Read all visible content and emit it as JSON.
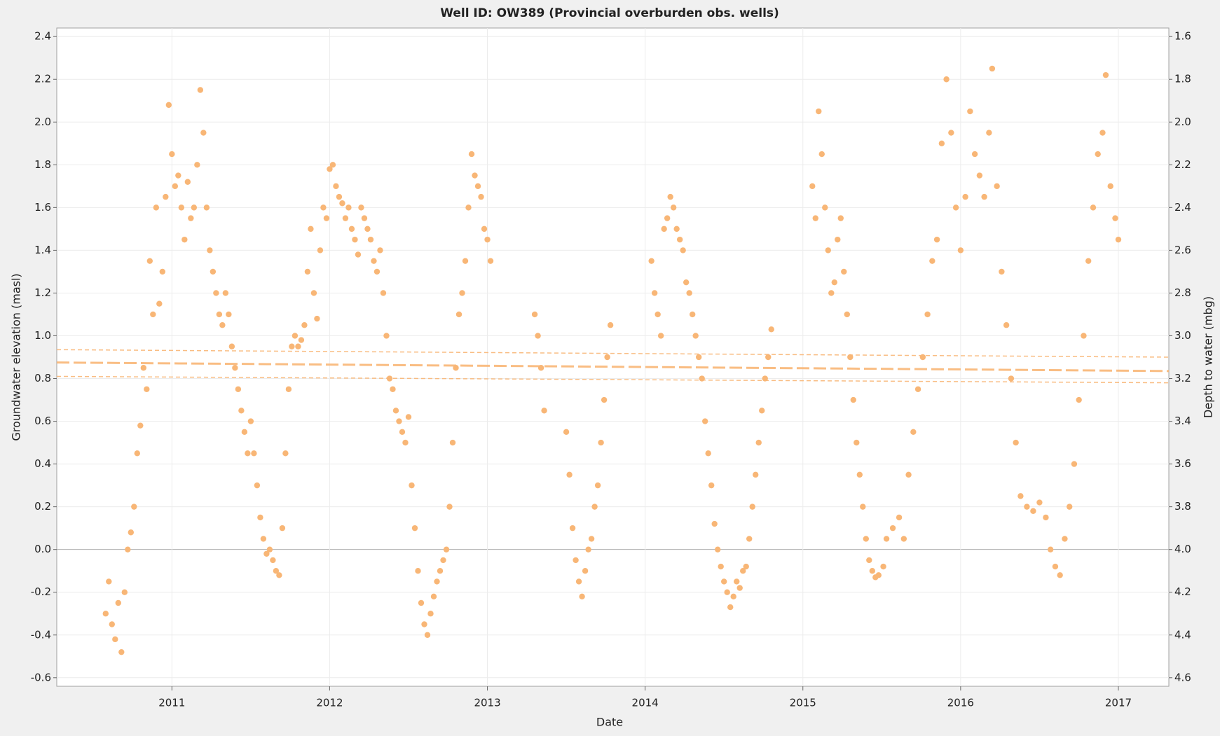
{
  "chart_data": {
    "type": "scatter",
    "title": "Well ID: OW389 (Provincial overburden obs. wells)",
    "xlabel": "Date",
    "ylabel": "Groundwater elevation (masl)",
    "y2label": "Depth to water (mbg)",
    "xlim": [
      2010.27,
      2017.32
    ],
    "xticks": [
      2011,
      2012,
      2013,
      2014,
      2015,
      2016,
      2017
    ],
    "ylim": [
      -0.64,
      2.44
    ],
    "yticks": [
      2.4,
      2.2,
      {
        "value": 2,
        "label": "2.0"
      },
      1.8,
      1.6,
      1.4,
      1.2,
      {
        "value": 1,
        "label": "1.0"
      },
      0.8,
      0.6,
      0.4,
      0.2,
      {
        "value": 0,
        "label": "0.0"
      },
      -0.2,
      -0.4,
      -0.6
    ],
    "y2lim": [
      4.64,
      1.56
    ],
    "y2ticks": [
      1.6,
      1.8,
      {
        "value": 2,
        "label": "2.0"
      },
      2.2,
      2.4,
      2.6,
      2.8,
      {
        "value": 3,
        "label": "3.0"
      },
      3.2,
      3.4,
      3.6,
      3.8,
      {
        "value": 4,
        "label": "4.0"
      },
      4.2,
      4.4,
      4.6
    ],
    "grid": true,
    "series": [
      {
        "color": "#f8b676",
        "x": [
          2010.58,
          2010.6,
          2010.62,
          2010.64,
          2010.66,
          2010.68,
          2010.7,
          2010.72,
          2010.74,
          2010.76,
          2010.78,
          2010.8,
          2010.82,
          2010.84,
          2010.86,
          2010.88,
          2010.9,
          2010.92,
          2010.94,
          2010.96,
          2010.98,
          2011.0,
          2011.02,
          2011.04,
          2011.06,
          2011.08,
          2011.1,
          2011.12,
          2011.14,
          2011.16,
          2011.18,
          2011.2,
          2011.22,
          2011.24,
          2011.26,
          2011.28,
          2011.3,
          2011.32,
          2011.34,
          2011.36,
          2011.38,
          2011.4,
          2011.42,
          2011.44,
          2011.46,
          2011.48,
          2011.5,
          2011.52,
          2011.54,
          2011.56,
          2011.58,
          2011.6,
          2011.62,
          2011.64,
          2011.66,
          2011.68,
          2011.7,
          2011.72,
          2011.74,
          2011.76,
          2011.78,
          2011.8,
          2011.82,
          2011.84,
          2011.86,
          2011.88,
          2011.9,
          2011.92,
          2011.94,
          2011.96,
          2011.98,
          2012.0,
          2012.02,
          2012.04,
          2012.06,
          2012.08,
          2012.1,
          2012.12,
          2012.14,
          2012.16,
          2012.18,
          2012.2,
          2012.22,
          2012.24,
          2012.26,
          2012.28,
          2012.3,
          2012.32,
          2012.34,
          2012.36,
          2012.38,
          2012.4,
          2012.42,
          2012.44,
          2012.46,
          2012.48,
          2012.5,
          2012.52,
          2012.54,
          2012.56,
          2012.58,
          2012.6,
          2012.62,
          2012.64,
          2012.66,
          2012.68,
          2012.7,
          2012.72,
          2012.74,
          2012.76,
          2012.78,
          2012.8,
          2012.82,
          2012.84,
          2012.86,
          2012.88,
          2012.9,
          2012.92,
          2012.94,
          2012.96,
          2012.98,
          2013.0,
          2013.02,
          2013.3,
          2013.32,
          2013.34,
          2013.36,
          2013.5,
          2013.52,
          2013.54,
          2013.56,
          2013.58,
          2013.6,
          2013.62,
          2013.64,
          2013.66,
          2013.68,
          2013.7,
          2013.72,
          2013.74,
          2013.76,
          2013.78,
          2014.04,
          2014.06,
          2014.08,
          2014.1,
          2014.12,
          2014.14,
          2014.16,
          2014.18,
          2014.2,
          2014.22,
          2014.24,
          2014.26,
          2014.28,
          2014.3,
          2014.32,
          2014.34,
          2014.36,
          2014.38,
          2014.4,
          2014.42,
          2014.44,
          2014.46,
          2014.48,
          2014.5,
          2014.52,
          2014.54,
          2014.56,
          2014.58,
          2014.6,
          2014.62,
          2014.64,
          2014.66,
          2014.68,
          2014.7,
          2014.72,
          2014.74,
          2014.76,
          2014.78,
          2014.8,
          2015.06,
          2015.08,
          2015.1,
          2015.12,
          2015.14,
          2015.16,
          2015.18,
          2015.2,
          2015.22,
          2015.24,
          2015.26,
          2015.28,
          2015.3,
          2015.32,
          2015.34,
          2015.36,
          2015.38,
          2015.4,
          2015.42,
          2015.44,
          2015.46,
          2015.48,
          2015.51,
          2015.53,
          2015.57,
          2015.61,
          2015.64,
          2015.67,
          2015.7,
          2015.73,
          2015.76,
          2015.79,
          2015.82,
          2015.85,
          2015.88,
          2015.91,
          2015.94,
          2015.97,
          2016.0,
          2016.03,
          2016.06,
          2016.09,
          2016.12,
          2016.15,
          2016.18,
          2016.2,
          2016.23,
          2016.26,
          2016.29,
          2016.32,
          2016.35,
          2016.38,
          2016.42,
          2016.46,
          2016.5,
          2016.54,
          2016.57,
          2016.6,
          2016.63,
          2016.66,
          2016.69,
          2016.72,
          2016.75,
          2016.78,
          2016.81,
          2016.84,
          2016.87,
          2016.9,
          2016.92,
          2016.95,
          2016.98,
          2017.0
        ],
        "values": [
          -0.3,
          -0.15,
          -0.35,
          -0.42,
          -0.25,
          -0.48,
          -0.2,
          0.0,
          0.08,
          0.2,
          0.45,
          0.58,
          0.85,
          0.75,
          1.35,
          1.1,
          1.6,
          1.15,
          1.3,
          1.65,
          2.08,
          1.85,
          1.7,
          1.75,
          1.6,
          1.45,
          1.72,
          1.55,
          1.6,
          1.8,
          2.15,
          1.95,
          1.6,
          1.4,
          1.3,
          1.2,
          1.1,
          1.05,
          1.2,
          1.1,
          0.95,
          0.85,
          0.75,
          0.65,
          0.55,
          0.45,
          0.6,
          0.45,
          0.3,
          0.15,
          0.05,
          -0.02,
          0.0,
          -0.05,
          -0.1,
          -0.12,
          0.1,
          0.45,
          0.75,
          0.95,
          1.0,
          0.95,
          0.98,
          1.05,
          1.3,
          1.5,
          1.2,
          1.08,
          1.4,
          1.6,
          1.55,
          1.78,
          1.8,
          1.7,
          1.65,
          1.62,
          1.55,
          1.6,
          1.5,
          1.45,
          1.38,
          1.6,
          1.55,
          1.5,
          1.45,
          1.35,
          1.3,
          1.4,
          1.2,
          1.0,
          0.8,
          0.75,
          0.65,
          0.6,
          0.55,
          0.5,
          0.62,
          0.3,
          0.1,
          -0.1,
          -0.25,
          -0.35,
          -0.4,
          -0.3,
          -0.22,
          -0.15,
          -0.1,
          -0.05,
          0.0,
          0.2,
          0.5,
          0.85,
          1.1,
          1.2,
          1.35,
          1.6,
          1.85,
          1.75,
          1.7,
          1.65,
          1.5,
          1.45,
          1.35,
          1.1,
          1.0,
          0.85,
          0.65,
          0.55,
          0.35,
          0.1,
          -0.05,
          -0.15,
          -0.22,
          -0.1,
          0.0,
          0.05,
          0.2,
          0.3,
          0.5,
          0.7,
          0.9,
          1.05,
          1.35,
          1.2,
          1.1,
          1.0,
          1.5,
          1.55,
          1.65,
          1.6,
          1.5,
          1.45,
          1.4,
          1.25,
          1.2,
          1.1,
          1.0,
          0.9,
          0.8,
          0.6,
          0.45,
          0.3,
          0.12,
          0.0,
          -0.08,
          -0.15,
          -0.2,
          -0.27,
          -0.22,
          -0.15,
          -0.18,
          -0.1,
          -0.08,
          0.05,
          0.2,
          0.35,
          0.5,
          0.65,
          0.8,
          0.9,
          1.03,
          1.7,
          1.55,
          2.05,
          1.85,
          1.6,
          1.4,
          1.2,
          1.25,
          1.45,
          1.55,
          1.3,
          1.1,
          0.9,
          0.7,
          0.5,
          0.35,
          0.2,
          0.05,
          -0.05,
          -0.1,
          -0.13,
          -0.12,
          -0.08,
          0.05,
          0.1,
          0.15,
          0.05,
          0.35,
          0.55,
          0.75,
          0.9,
          1.1,
          1.35,
          1.45,
          1.9,
          2.2,
          1.95,
          1.6,
          1.4,
          1.65,
          2.05,
          1.85,
          1.75,
          1.65,
          1.95,
          2.25,
          1.7,
          1.3,
          1.05,
          0.8,
          0.5,
          0.25,
          0.2,
          0.18,
          0.22,
          0.15,
          0.0,
          -0.08,
          -0.12,
          0.05,
          0.2,
          0.4,
          0.7,
          1.0,
          1.35,
          1.6,
          1.85,
          1.95,
          2.22,
          1.7,
          1.55,
          1.45
        ]
      }
    ],
    "lines": [
      {
        "x": [
          2010.27,
          2017.32
        ],
        "values": [
          0.875,
          0.835
        ],
        "dash": "long"
      },
      {
        "x": [
          2010.27,
          2017.32
        ],
        "values": [
          0.935,
          0.9
        ],
        "dash": "short"
      },
      {
        "x": [
          2010.27,
          2017.32
        ],
        "values": [
          0.81,
          0.78
        ],
        "dash": "short"
      }
    ]
  }
}
